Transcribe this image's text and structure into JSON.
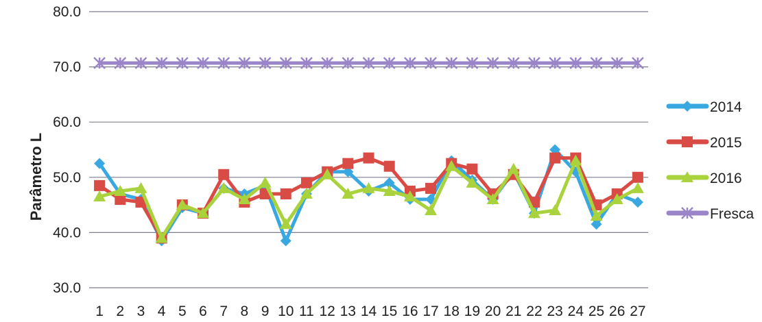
{
  "chart_data": {
    "type": "line",
    "title": "",
    "xlabel": "",
    "ylabel": "Parâmetro L",
    "ylim": [
      30,
      80
    ],
    "yticks": [
      "30.0",
      "40.0",
      "50.0",
      "60.0",
      "70.0",
      "80.0"
    ],
    "grid": "horizontal",
    "legend_position": "right",
    "categories": [
      "1",
      "2",
      "3",
      "4",
      "5",
      "6",
      "7",
      "8",
      "9",
      "10",
      "11",
      "12",
      "13",
      "14",
      "15",
      "16",
      "17",
      "18",
      "19",
      "20",
      "21",
      "22",
      "23",
      "24",
      "25",
      "26",
      "27"
    ],
    "series": [
      {
        "name": "2014",
        "color": "#3aa8e0",
        "marker": "diamond",
        "values": [
          52.5,
          47,
          46,
          38.5,
          44.5,
          43.5,
          48,
          47,
          48.5,
          38.5,
          47,
          51,
          51,
          47.5,
          49,
          46,
          46,
          53,
          49.5,
          46,
          51,
          43.5,
          55,
          51,
          41.5,
          47,
          45.5
        ]
      },
      {
        "name": "2015",
        "color": "#d94b45",
        "marker": "square",
        "values": [
          48.5,
          46,
          45.5,
          39,
          45,
          43.5,
          50.5,
          45.5,
          47,
          47,
          49,
          51,
          52.5,
          53.5,
          52,
          47.5,
          48,
          52.5,
          51.5,
          47,
          50.5,
          45.5,
          53.5,
          53.5,
          45,
          47,
          50
        ]
      },
      {
        "name": "2016",
        "color": "#a9d23c",
        "marker": "triangle",
        "values": [
          46.5,
          47.5,
          48,
          39,
          45,
          43.5,
          48,
          46,
          49,
          41.5,
          47,
          50.5,
          47,
          48,
          47.5,
          46.5,
          44,
          52,
          49,
          46,
          51.5,
          43.5,
          44,
          53,
          43,
          46,
          48
        ]
      },
      {
        "name": "Fresca",
        "color": "#9a85c9",
        "marker": "star",
        "values": [
          70.7,
          70.7,
          70.7,
          70.7,
          70.7,
          70.7,
          70.7,
          70.7,
          70.7,
          70.7,
          70.7,
          70.7,
          70.7,
          70.7,
          70.7,
          70.7,
          70.7,
          70.7,
          70.7,
          70.7,
          70.7,
          70.7,
          70.7,
          70.7,
          70.7,
          70.7,
          70.7
        ]
      }
    ]
  }
}
